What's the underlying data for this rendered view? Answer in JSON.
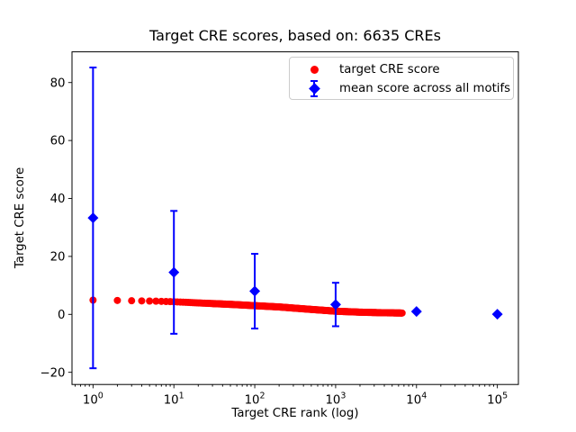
{
  "figure": {
    "title": "Target CRE scores, based on: 6635 CREs",
    "xlabel": "Target CRE rank (log)",
    "ylabel": "Target CRE score"
  },
  "colors": {
    "target": "#ff0000",
    "mean": "#0000ff",
    "axis": "#000000",
    "legend_border": "#cccccc",
    "background": "#ffffff"
  },
  "legend": {
    "position": "upper right",
    "items": [
      {
        "label": "target CRE score",
        "marker": "red-circle"
      },
      {
        "label": "mean score across all motifs",
        "marker": "blue-diamond-errorbar"
      }
    ]
  },
  "chart_data": {
    "type": "scatter",
    "title": "Target CRE scores, based on: 6635 CREs",
    "xlabel": "Target CRE rank (log)",
    "ylabel": "Target CRE score",
    "x_scale": "log",
    "xlim_log10": [
      -0.26,
      5.26
    ],
    "ylim": [
      -24.2,
      90.6
    ],
    "x_tick_exponents": [
      0,
      1,
      2,
      3,
      4,
      5
    ],
    "x_tick_base": "10",
    "y_ticks": [
      -20,
      0,
      20,
      40,
      60,
      80
    ],
    "grid": false,
    "n_cres": 6635,
    "series": [
      {
        "name": "target CRE score",
        "marker": "circle",
        "color": "#ff0000",
        "n_points": 6635,
        "anchors": {
          "rank": [
            1,
            2,
            3,
            4,
            6,
            10,
            20,
            50,
            100,
            200,
            500,
            1000,
            2000,
            4000,
            6635
          ],
          "score": [
            4.9,
            4.8,
            4.7,
            4.65,
            4.55,
            4.35,
            3.95,
            3.45,
            3.0,
            2.55,
            1.7,
            1.1,
            0.75,
            0.55,
            0.45
          ]
        }
      },
      {
        "name": "mean score across all motifs",
        "marker": "diamond",
        "color": "#0000ff",
        "rank": [
          1,
          10,
          100,
          1000,
          10000,
          100000
        ],
        "score": [
          33.3,
          14.5,
          8.0,
          3.4,
          1.0,
          0.05
        ],
        "error": [
          51.9,
          21.2,
          12.9,
          7.5,
          0,
          0
        ]
      }
    ]
  }
}
